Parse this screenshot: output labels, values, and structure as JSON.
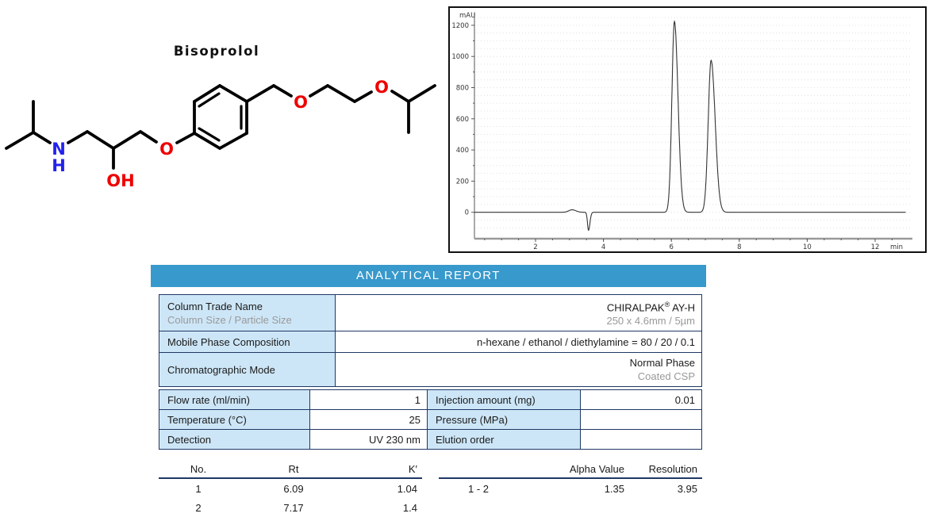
{
  "molecule": {
    "title": "Bisoprolol",
    "atoms": {
      "n": "N",
      "h": "H",
      "oh": "OH",
      "o_phenoxy": "O",
      "o_ether1": "O",
      "o_ether2": "O"
    },
    "colors": {
      "nitrogen": "#2222ee",
      "oxygen": "#ee0000",
      "bond": "#000000"
    }
  },
  "chart_data": {
    "type": "line",
    "ylabel": "mAU",
    "xlabel": "min",
    "xlim": [
      0.2,
      13.3
    ],
    "ylim": [
      -150,
      1280
    ],
    "x_ticks": [
      2,
      4,
      6,
      8,
      10,
      12
    ],
    "y_ticks": [
      0,
      200,
      400,
      600,
      800,
      1000,
      1200
    ],
    "baseline_mau": 0,
    "grid": "dotted-horizontal",
    "signal_color": "#333333",
    "peaks": [
      {
        "name": "baseline-bump",
        "rt_min": 3.08,
        "height_mau": 16,
        "sigma_left": 0.1,
        "sigma_right": 0.11
      },
      {
        "name": "injection-dip",
        "rt_min": 3.56,
        "height_mau": -115,
        "sigma_left": 0.03,
        "sigma_right": 0.042
      },
      {
        "name": "enantiomer-peak-1",
        "rt_min": 6.09,
        "height_mau": 1225,
        "sigma_left": 0.075,
        "sigma_right": 0.105
      },
      {
        "name": "enantiomer-peak-2",
        "rt_min": 7.17,
        "height_mau": 975,
        "sigma_left": 0.085,
        "sigma_right": 0.12
      }
    ]
  },
  "report": {
    "header": "ANALYTICAL REPORT",
    "header_bg": "#3899CC",
    "border_color": "#1F3864",
    "label_bg": "#CDE6F7",
    "info_table": {
      "row1": {
        "label": "Column Trade Name",
        "label2": "Column Size / Particle Size",
        "value_pre": "CHIRALPAK",
        "value_sup": "®",
        "value_post": " AY-H",
        "value2": "250 x 4.6mm / 5µm"
      },
      "row2": {
        "label": "Mobile Phase Composition",
        "value": "n-hexane / ethanol / diethylamine = 80 / 20 / 0.1"
      },
      "row3": {
        "label": "Chromatographic Mode",
        "value": "Normal Phase",
        "value2": "Coated CSP"
      }
    },
    "conditions_table": {
      "rows": [
        {
          "label_left": "Flow rate (ml/min)",
          "value_left": "1",
          "label_right": "Injection amount (mg)",
          "value_right": "0.01"
        },
        {
          "label_left": "Temperature (°C)",
          "value_left": "25",
          "label_right": "Pressure (MPa)",
          "value_right": ""
        },
        {
          "label_left": "Detection",
          "value_left": "UV 230 nm",
          "label_right": "Elution order",
          "value_right": ""
        }
      ]
    },
    "results": {
      "left": {
        "headers": [
          "No.",
          "Rt",
          "K′"
        ],
        "rows": [
          [
            "1",
            "6.09",
            "1.04"
          ],
          [
            "2",
            "7.17",
            "1.4"
          ]
        ]
      },
      "right": {
        "headers": [
          "",
          "Alpha Value",
          "Resolution"
        ],
        "rows": [
          [
            "1 - 2",
            "1.35",
            "3.95"
          ]
        ]
      }
    }
  }
}
